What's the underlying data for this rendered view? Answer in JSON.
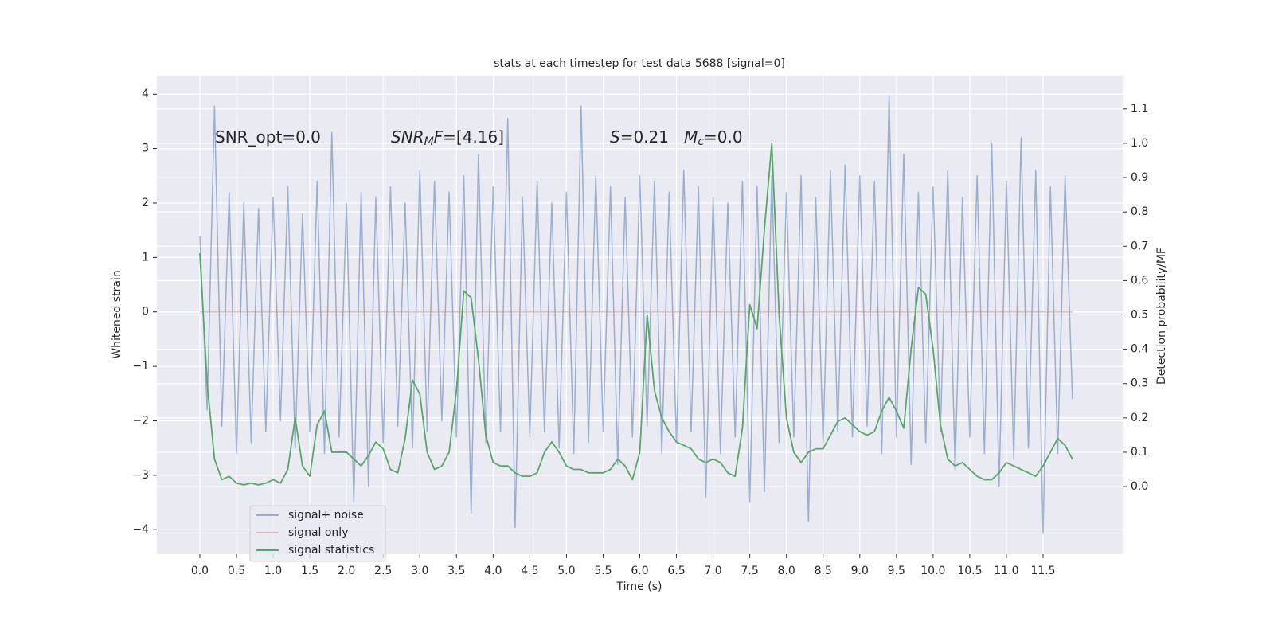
{
  "chart_data": {
    "type": "line",
    "title": "stats at each timestep for test data 5688 [signal=0]",
    "xlabel": "Time (s)",
    "ylabel": "Whitened strain",
    "y2label": "Detection probability/MF",
    "annotations": [
      {
        "parts": [
          {
            "text": "SNR_opt=0.0",
            "style": "normal"
          }
        ]
      },
      {
        "parts": [
          {
            "text": "SNR",
            "style": "italic"
          },
          {
            "text": "M",
            "style": "italic-sub"
          },
          {
            "text": "F",
            "style": "italic"
          },
          {
            "text": "=[4.16]",
            "style": "normal"
          }
        ]
      },
      {
        "parts": [
          {
            "text": "S",
            "style": "italic"
          },
          {
            "text": "=0.21   ",
            "style": "normal"
          },
          {
            "text": "M",
            "style": "italic"
          },
          {
            "text": "c",
            "style": "italic-sub"
          },
          {
            "text": "=0.0",
            "style": "normal"
          }
        ]
      }
    ],
    "x": [
      0,
      0.1,
      0.2,
      0.3,
      0.4,
      0.5,
      0.6,
      0.7,
      0.8,
      0.9,
      1,
      1.1,
      1.2,
      1.3,
      1.4,
      1.5,
      1.6,
      1.7,
      1.8,
      1.9,
      2,
      2.1,
      2.2,
      2.3,
      2.4,
      2.5,
      2.6,
      2.7,
      2.8,
      2.9,
      3,
      3.1,
      3.2,
      3.3,
      3.4,
      3.5,
      3.6,
      3.7,
      3.8,
      3.9,
      4,
      4.1,
      4.2,
      4.3,
      4.4,
      4.5,
      4.6,
      4.7,
      4.8,
      4.9,
      5,
      5.1,
      5.2,
      5.3,
      5.4,
      5.5,
      5.6,
      5.7,
      5.8,
      5.9,
      6,
      6.1,
      6.2,
      6.3,
      6.4,
      6.5,
      6.6,
      6.7,
      6.8,
      6.9,
      7,
      7.1,
      7.2,
      7.3,
      7.4,
      7.5,
      7.6,
      7.7,
      7.8,
      7.9,
      8,
      8.1,
      8.2,
      8.3,
      8.4,
      8.5,
      8.6,
      8.7,
      8.8,
      8.9,
      9,
      9.1,
      9.2,
      9.3,
      9.4,
      9.5,
      9.6,
      9.7,
      9.8,
      9.9,
      10,
      10.1,
      10.2,
      10.3,
      10.4,
      10.5,
      10.6,
      10.7,
      10.8,
      10.9,
      11,
      11.1,
      11.2,
      11.3,
      11.4,
      11.5,
      11.6,
      11.7,
      11.8,
      11.9
    ],
    "series": [
      {
        "name": "signal+ noise",
        "color": "#4c72b0",
        "opacity": 0.5,
        "axis": "y",
        "values": [
          1.4,
          -1.8,
          3.78,
          -2.1,
          2.2,
          -2.6,
          2.0,
          -2.4,
          1.9,
          -2.2,
          2.1,
          -2.0,
          2.3,
          -2.5,
          1.8,
          -2.2,
          2.4,
          -2.6,
          3.3,
          -2.3,
          2.0,
          -3.5,
          2.2,
          -3.2,
          2.1,
          -2.4,
          2.3,
          -2.1,
          2.0,
          -2.5,
          2.6,
          -2.2,
          2.4,
          -2.0,
          2.2,
          -2.3,
          2.5,
          -3.7,
          2.9,
          -2.4,
          2.3,
          -2.2,
          3.55,
          -3.96,
          2.1,
          -2.3,
          2.4,
          -2.2,
          2.0,
          -2.5,
          2.2,
          -2.6,
          3.78,
          -2.4,
          2.5,
          -2.2,
          2.3,
          -2.8,
          2.1,
          -2.3,
          2.5,
          -2.1,
          2.4,
          -2.6,
          2.2,
          -2.4,
          2.6,
          -2.2,
          2.3,
          -3.4,
          2.1,
          -2.6,
          2.0,
          -2.3,
          2.4,
          -3.5,
          2.3,
          -3.3,
          2.5,
          -2.4,
          2.2,
          -2.3,
          2.5,
          -3.85,
          2.1,
          -2.4,
          2.6,
          -2.2,
          2.7,
          -2.3,
          2.5,
          -2.1,
          2.4,
          -2.6,
          3.97,
          -2.3,
          2.9,
          -2.8,
          2.2,
          -2.4,
          2.3,
          -2.2,
          2.6,
          -2.9,
          2.1,
          -2.3,
          2.5,
          -2.6,
          3.1,
          -3.2,
          2.4,
          -2.7,
          3.2,
          -2.5,
          2.6,
          -4.07,
          2.3,
          -2.6,
          2.5,
          -1.6
        ]
      },
      {
        "name": "signal only",
        "color": "#dd8452",
        "opacity": 0.5,
        "axis": "y",
        "values": [
          0,
          0,
          0,
          0,
          0,
          0,
          0,
          0,
          0,
          0,
          0,
          0,
          0,
          0,
          0,
          0,
          0,
          0,
          0,
          0,
          0,
          0,
          0,
          0,
          0,
          0,
          0,
          0,
          0,
          0,
          0,
          0,
          0,
          0,
          0,
          0,
          0,
          0,
          0,
          0,
          0,
          0,
          0,
          0,
          0,
          0,
          0,
          0,
          0,
          0,
          0,
          0,
          0,
          0,
          0,
          0,
          0,
          0,
          0,
          0,
          0,
          0,
          0,
          0,
          0,
          0,
          0,
          0,
          0,
          0,
          0,
          0,
          0,
          0,
          0,
          0,
          0,
          0,
          0,
          0,
          0,
          0,
          0,
          0,
          0,
          0,
          0,
          0,
          0,
          0,
          0,
          0,
          0,
          0,
          0,
          0,
          0,
          0,
          0,
          0,
          0,
          0,
          0,
          0,
          0,
          0,
          0,
          0,
          0,
          0,
          0,
          0,
          0,
          0,
          0,
          0,
          0,
          0,
          0,
          0
        ]
      },
      {
        "name": "signal statistics",
        "color": "#55a868",
        "opacity": 1,
        "axis": "y2",
        "values": [
          0.68,
          0.3,
          0.08,
          0.02,
          0.03,
          0.01,
          0.005,
          0.01,
          0.005,
          0.01,
          0.02,
          0.01,
          0.05,
          0.2,
          0.06,
          0.03,
          0.18,
          0.22,
          0.1,
          0.1,
          0.1,
          0.08,
          0.06,
          0.09,
          0.13,
          0.11,
          0.05,
          0.04,
          0.14,
          0.31,
          0.27,
          0.1,
          0.05,
          0.06,
          0.1,
          0.28,
          0.57,
          0.55,
          0.37,
          0.15,
          0.07,
          0.06,
          0.06,
          0.04,
          0.03,
          0.03,
          0.04,
          0.1,
          0.13,
          0.1,
          0.06,
          0.05,
          0.05,
          0.04,
          0.04,
          0.04,
          0.05,
          0.08,
          0.06,
          0.02,
          0.1,
          0.5,
          0.28,
          0.2,
          0.16,
          0.13,
          0.12,
          0.11,
          0.08,
          0.07,
          0.08,
          0.07,
          0.04,
          0.03,
          0.17,
          0.53,
          0.46,
          0.75,
          1.0,
          0.5,
          0.2,
          0.1,
          0.07,
          0.1,
          0.11,
          0.11,
          0.15,
          0.19,
          0.2,
          0.18,
          0.16,
          0.15,
          0.16,
          0.22,
          0.26,
          0.22,
          0.17,
          0.4,
          0.58,
          0.56,
          0.4,
          0.18,
          0.08,
          0.06,
          0.07,
          0.05,
          0.03,
          0.02,
          0.02,
          0.04,
          0.07,
          0.06,
          0.05,
          0.04,
          0.03,
          0.06,
          0.1,
          0.14,
          0.12,
          0.08
        ]
      }
    ],
    "xlim": [
      -0.586,
      12.586
    ],
    "ylim": [
      -4.45,
      4.34
    ],
    "y2lim": [
      -0.197,
      1.197
    ],
    "xticks": [
      {
        "value": 0,
        "label": "0.0"
      },
      0.5,
      {
        "value": 1,
        "label": "1.0"
      },
      1.5,
      {
        "value": 2,
        "label": "2.0"
      },
      2.5,
      {
        "value": 3,
        "label": "3.0"
      },
      3.5,
      {
        "value": 4,
        "label": "4.0"
      },
      4.5,
      {
        "value": 5,
        "label": "5.0"
      },
      5.5,
      {
        "value": 6,
        "label": "6.0"
      },
      6.5,
      {
        "value": 7,
        "label": "7.0"
      },
      7.5,
      {
        "value": 8,
        "label": "8.0"
      },
      8.5,
      {
        "value": 9,
        "label": "9.0"
      },
      9.5,
      {
        "value": 10,
        "label": "10.0"
      },
      10.5,
      {
        "value": 11,
        "label": "11.0"
      },
      11.5
    ],
    "yticks": [
      4,
      3,
      2,
      1,
      0,
      {
        "value": -1,
        "label": "−1"
      },
      {
        "value": -2,
        "label": "−2"
      },
      {
        "value": -3,
        "label": "−3"
      },
      {
        "value": -4,
        "label": "−4"
      }
    ],
    "y2ticks": [
      {
        "value": 0,
        "label": "0.0"
      },
      0.1,
      0.2,
      0.3,
      0.4,
      0.5,
      0.6,
      0.7,
      0.8,
      0.9,
      {
        "value": 1,
        "label": "1.0"
      },
      1.1
    ],
    "grid": true,
    "background": "#eaeaf2",
    "legend": "lower left"
  }
}
